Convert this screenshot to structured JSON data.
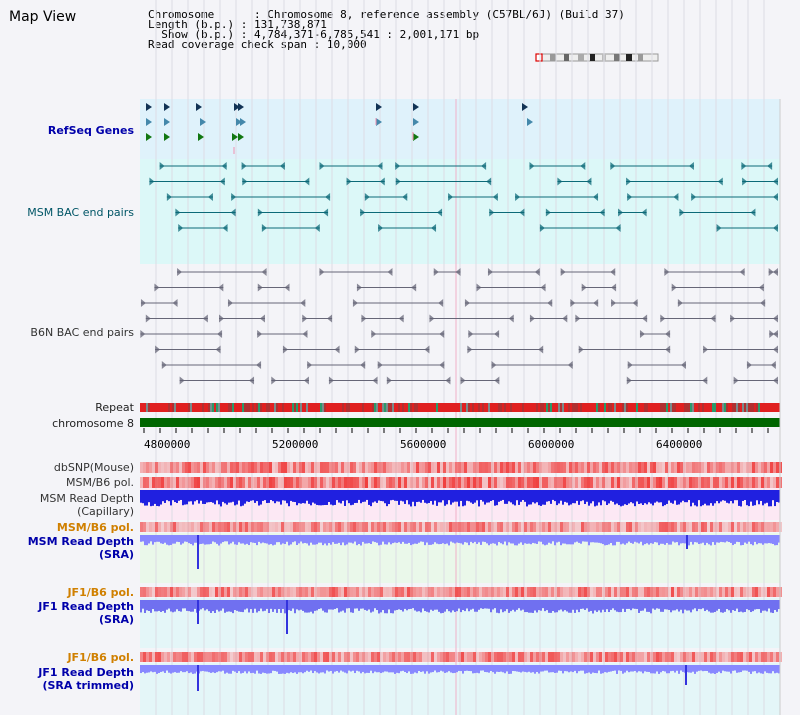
{
  "title": "Map View",
  "info": {
    "chromosome_key": "Chromosome",
    "chromosome_val": "Chromosome 8, reference assembly (C57BL/6J) (Build 37)",
    "length_key": "Length (b.p.)",
    "length_val": "131,738,871",
    "show_key": "Show (b.p.)",
    "show_val": "4,784,371-6,785,541 : 2,001,171 bp",
    "span_key": "Read coverage check span",
    "span_val": "10,000"
  },
  "tracks": {
    "refseq": "RefSeq Genes",
    "msm_bac": "MSM BAC end pairs",
    "b6n_bac": "B6N BAC end pairs",
    "repeat": "Repeat",
    "chromosome": "chromosome 8",
    "dbsnp": "dbSNP(Mouse)",
    "msm_b6_pol": "MSM/B6 pol.",
    "msm_depth_cap_1": "MSM Read Depth",
    "msm_depth_cap_2": "(Capillary)",
    "msm_b6_pol_2": "MSM/B6 pol.",
    "msm_depth_sra_1": "MSM Read Depth",
    "msm_depth_sra_2": "(SRA)",
    "jf1_b6_pol": "JF1/B6 pol.",
    "jf1_depth_sra_1": "JF1 Read Depth",
    "jf1_depth_sra_2": "(SRA)",
    "jf1_b6_pol_2": "JF1/B6 pol.",
    "jf1_depth_trim_1": "JF1 Read Depth",
    "jf1_depth_trim_2": "(SRA trimmed)"
  },
  "axis": {
    "ticks": [
      "4800000",
      "5200000",
      "5600000",
      "6000000",
      "6400000"
    ]
  },
  "colors": {
    "refseq_bg": "#dff2fb",
    "msm_bg": "#dcf8f8",
    "b6n_bg": "#f4f4f8",
    "chrom_green": "#006600",
    "repeat_red": "#e02020",
    "depth_blue": "#2020e0",
    "sra_blue": "#8888ff",
    "pol_red": "#f04040"
  }
}
